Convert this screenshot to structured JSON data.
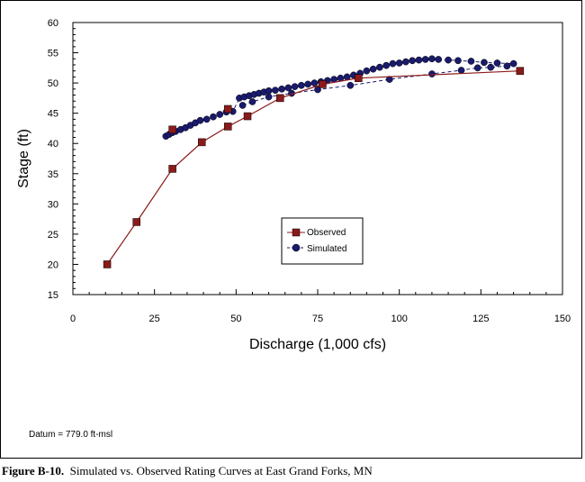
{
  "caption": {
    "label": "Figure B-10.",
    "text": "Simulated vs. Observed Rating Curves at East Grand Forks, MN"
  },
  "datum_note": "Datum = 779.0 ft-msl",
  "chart_data": {
    "type": "line",
    "title": "",
    "xlabel": "Discharge (1,000 cfs)",
    "ylabel": "Stage (ft)",
    "xlim": [
      0,
      150
    ],
    "ylim": [
      15,
      60
    ],
    "xticks": [
      0,
      25,
      50,
      75,
      100,
      125,
      150
    ],
    "yticks": [
      15,
      20,
      25,
      30,
      35,
      40,
      45,
      50,
      55,
      60
    ],
    "grid": false,
    "legend": "center",
    "series": [
      {
        "name": "Observed",
        "color": "#8b1a1a",
        "marker": "square",
        "line": "solid",
        "points": [
          [
            10.5,
            20.0
          ],
          [
            19.5,
            27.0
          ],
          [
            30.5,
            35.8
          ],
          [
            39.5,
            40.2
          ],
          [
            47.5,
            42.8
          ],
          [
            53.5,
            44.5
          ],
          [
            63.5,
            47.5
          ],
          [
            76.5,
            49.8
          ],
          [
            87.5,
            50.8
          ],
          [
            137.0,
            52.0
          ]
        ],
        "extra_markers": [
          [
            30.5,
            42.3
          ],
          [
            47.5,
            45.7
          ]
        ]
      },
      {
        "name": "Simulated",
        "color": "#1a1a6e",
        "marker": "circle",
        "line": "dashed",
        "points": [
          [
            28.5,
            41.2
          ],
          [
            29.5,
            41.5
          ],
          [
            30.5,
            41.8
          ],
          [
            31.5,
            42.0
          ],
          [
            33,
            42.3
          ],
          [
            34.5,
            42.6
          ],
          [
            36,
            43.0
          ],
          [
            37.5,
            43.4
          ],
          [
            39,
            43.8
          ],
          [
            41,
            44.0
          ],
          [
            43,
            44.4
          ],
          [
            45,
            44.8
          ],
          [
            47,
            45.2
          ],
          [
            49,
            45.3
          ],
          [
            51,
            47.5
          ],
          [
            52.5,
            47.7
          ],
          [
            54,
            47.9
          ],
          [
            55.5,
            48.1
          ],
          [
            57,
            48.3
          ],
          [
            58.5,
            48.5
          ],
          [
            60,
            48.7
          ],
          [
            62,
            48.8
          ],
          [
            64,
            49.0
          ],
          [
            66,
            49.2
          ],
          [
            68,
            49.4
          ],
          [
            70,
            49.6
          ],
          [
            72,
            49.8
          ],
          [
            74,
            50.0
          ],
          [
            76,
            50.2
          ],
          [
            78,
            50.4
          ],
          [
            80,
            50.6
          ],
          [
            82,
            50.8
          ],
          [
            84,
            51.0
          ],
          [
            86,
            51.3
          ],
          [
            88,
            51.6
          ],
          [
            90,
            52.0
          ],
          [
            92,
            52.3
          ],
          [
            94,
            52.6
          ],
          [
            96,
            52.9
          ],
          [
            98,
            53.2
          ],
          [
            100,
            53.3
          ],
          [
            102,
            53.5
          ],
          [
            104,
            53.7
          ],
          [
            106,
            53.8
          ],
          [
            108,
            53.9
          ],
          [
            110,
            54.0
          ],
          [
            112,
            53.9
          ],
          [
            115,
            53.8
          ],
          [
            118,
            53.7
          ],
          [
            122,
            53.6
          ],
          [
            126,
            53.4
          ],
          [
            130,
            53.3
          ],
          [
            135,
            53.2
          ],
          [
            133,
            52.8
          ],
          [
            128,
            52.6
          ],
          [
            124,
            52.5
          ],
          [
            119,
            52.1
          ],
          [
            110,
            51.5
          ],
          [
            97,
            50.6
          ],
          [
            85,
            49.6
          ],
          [
            75,
            48.9
          ],
          [
            67,
            48.3
          ],
          [
            60,
            47.7
          ],
          [
            55,
            46.9
          ],
          [
            52,
            46.3
          ]
        ]
      }
    ]
  }
}
